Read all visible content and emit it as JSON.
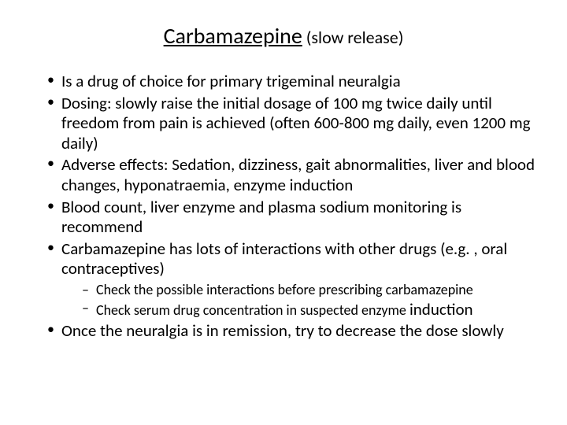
{
  "slide": {
    "title": {
      "main": "Carbamazepine",
      "sub": " (slow release)"
    },
    "bullets": [
      "Is a drug of choice for primary trigeminal neuralgia",
      "Dosing: slowly raise the initial dosage of 100 mg twice daily until freedom from pain is achieved (often 600-800 mg daily, even 1200 mg daily)",
      "Adverse effects: Sedation, dizziness, gait abnormalities, liver and blood changes, hyponatraemia, enzyme induction",
      "Blood count, liver enzyme and plasma sodium monitoring is recommend",
      "Carbamazepine has lots of interactions with other drugs (e.g. , oral contraceptives)",
      "Once the neuralgia is in remission, try to decrease the dose slowly"
    ],
    "subbullets": {
      "b1": "Check the possible interactions before prescribing carbamazepine",
      "b2_pre": "Check serum drug concentration in suspected enzyme ",
      "b2_em": "induction"
    }
  },
  "style": {
    "background_color": "#ffffff",
    "text_color": "#000000",
    "title_main_fontsize": 28,
    "title_sub_fontsize": 22,
    "body_fontsize": 21,
    "sub_fontsize": 18,
    "font_family": "Calibri, Arial, sans-serif",
    "slide_width": 720,
    "slide_height": 540
  }
}
